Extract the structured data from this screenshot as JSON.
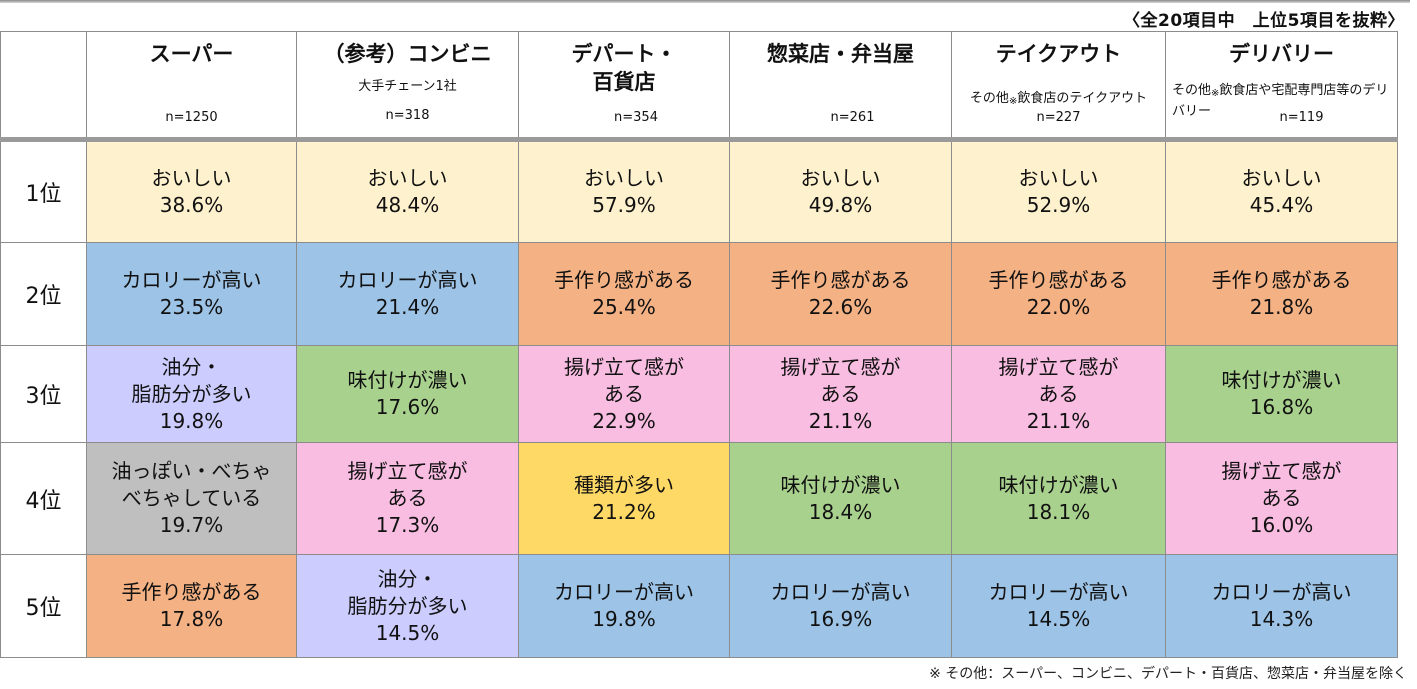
{
  "top_note": "〈全20項目中　上位5項目を抜粋〉",
  "bottom_note": "※ その他：スーパー、コンビニ、デパート・百貨店、惣菜店・弁当屋を除く",
  "colors": {
    "oishii": "#fef1cd",
    "calorie": "#9dc3e6",
    "tezukuri": "#f4b183",
    "ageta": "#f8bde1",
    "ajitsuke": "#a9d18e",
    "abura": "#ccccff",
    "aburappoi": "#bfbfbf",
    "shurui": "#ffd966"
  },
  "columns": [
    {
      "name": "スーパー",
      "sub": "",
      "n": "n=1250"
    },
    {
      "name": "（参考）コンビニ",
      "sub": "大手チェーン1社",
      "n": "n=318"
    },
    {
      "name": "デパート・\n百貨店",
      "sub": "",
      "n": "n=354"
    },
    {
      "name": "惣菜店・弁当屋",
      "sub": "",
      "n": "n=261"
    },
    {
      "name": "テイクアウト",
      "sub_pre": "その他",
      "sub_mark": "※",
      "sub_post": "飲食店のテイクアウト",
      "n": "n=227"
    },
    {
      "name": "デリバリー",
      "sub_pre": "その他",
      "sub_mark": "※",
      "sub_post": "飲食店や宅配専門店等のデリバリー",
      "n": "n=119"
    }
  ],
  "ranks": [
    {
      "label": "1位",
      "cells": [
        {
          "label": "おいしい",
          "value": "38.6%",
          "color": "#fef1cd"
        },
        {
          "label": "おいしい",
          "value": "48.4%",
          "color": "#fef1cd"
        },
        {
          "label": "おいしい",
          "value": "57.9%",
          "color": "#fef1cd"
        },
        {
          "label": "おいしい",
          "value": "49.8%",
          "color": "#fef1cd"
        },
        {
          "label": "おいしい",
          "value": "52.9%",
          "color": "#fef1cd"
        },
        {
          "label": "おいしい",
          "value": "45.4%",
          "color": "#fef1cd"
        }
      ]
    },
    {
      "label": "2位",
      "cells": [
        {
          "label": "カロリーが高い",
          "value": "23.5%",
          "color": "#9dc3e6"
        },
        {
          "label": "カロリーが高い",
          "value": "21.4%",
          "color": "#9dc3e6"
        },
        {
          "label": "手作り感がある",
          "value": "25.4%",
          "color": "#f4b183"
        },
        {
          "label": "手作り感がある",
          "value": "22.6%",
          "color": "#f4b183"
        },
        {
          "label": "手作り感がある",
          "value": "22.0%",
          "color": "#f4b183"
        },
        {
          "label": "手作り感がある",
          "value": "21.8%",
          "color": "#f4b183"
        }
      ]
    },
    {
      "label": "3位",
      "cells": [
        {
          "label": "油分・\n脂肪分が多い",
          "value": "19.8%",
          "color": "#ccccff"
        },
        {
          "label": "味付けが濃い",
          "value": "17.6%",
          "color": "#a9d18e"
        },
        {
          "label": "揚げ立て感が\nある",
          "value": "22.9%",
          "color": "#f8bde1"
        },
        {
          "label": "揚げ立て感が\nある",
          "value": "21.1%",
          "color": "#f8bde1"
        },
        {
          "label": "揚げ立て感が\nある",
          "value": "21.1%",
          "color": "#f8bde1"
        },
        {
          "label": "味付けが濃い",
          "value": "16.8%",
          "color": "#a9d18e"
        }
      ]
    },
    {
      "label": "4位",
      "cells": [
        {
          "label": "油っぽい・べちゃ\nべちゃしている",
          "value": "19.7%",
          "color": "#bfbfbf"
        },
        {
          "label": "揚げ立て感が\nある",
          "value": "17.3%",
          "color": "#f8bde1"
        },
        {
          "label": "種類が多い",
          "value": "21.2%",
          "color": "#ffd966"
        },
        {
          "label": "味付けが濃い",
          "value": "18.4%",
          "color": "#a9d18e"
        },
        {
          "label": "味付けが濃い",
          "value": "18.1%",
          "color": "#a9d18e"
        },
        {
          "label": "揚げ立て感が\nある",
          "value": "16.0%",
          "color": "#f8bde1"
        }
      ]
    },
    {
      "label": "5位",
      "cells": [
        {
          "label": "手作り感がある",
          "value": "17.8%",
          "color": "#f4b183"
        },
        {
          "label": "油分・\n脂肪分が多い",
          "value": "14.5%",
          "color": "#ccccff"
        },
        {
          "label": "カロリーが高い",
          "value": "19.8%",
          "color": "#9dc3e6"
        },
        {
          "label": "カロリーが高い",
          "value": "16.9%",
          "color": "#9dc3e6"
        },
        {
          "label": "カロリーが高い",
          "value": "14.5%",
          "color": "#9dc3e6"
        },
        {
          "label": "カロリーが高い",
          "value": "14.3%",
          "color": "#9dc3e6"
        }
      ]
    }
  ]
}
